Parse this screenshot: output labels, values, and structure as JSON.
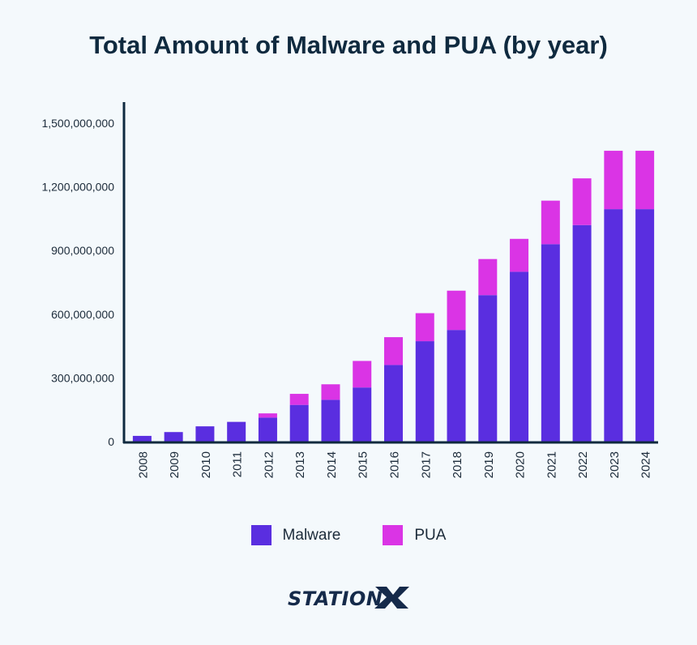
{
  "title": "Total Amount of Malware and PUA (by year)",
  "brand": "STATIONX",
  "legend": [
    {
      "label": "Malware",
      "color": "#5a2ee0"
    },
    {
      "label": "PUA",
      "color": "#da34e5"
    }
  ],
  "chart_data": {
    "type": "bar",
    "stacked": true,
    "title": "Total Amount of Malware and PUA (by year)",
    "xlabel": "",
    "ylabel": "",
    "ylim": [
      0,
      1600000000
    ],
    "yticks": [
      0,
      300000000,
      600000000,
      900000000,
      1200000000,
      1500000000
    ],
    "ytick_labels": [
      "0",
      "300,000,000",
      "600,000,000",
      "900,000,000",
      "1,200,000,000",
      "1,500,000,000"
    ],
    "grid": false,
    "legend_position": "bottom",
    "categories": [
      "2008",
      "2009",
      "2010",
      "2011",
      "2012",
      "2013",
      "2014",
      "2015",
      "2016",
      "2017",
      "2018",
      "2019",
      "2020",
      "2021",
      "2022",
      "2023",
      "2024"
    ],
    "series": [
      {
        "name": "Malware",
        "color": "#5a2ee0",
        "values": [
          27000000,
          45000000,
          72000000,
          93000000,
          113000000,
          173000000,
          197000000,
          255000000,
          361000000,
          473000000,
          526000000,
          690000000,
          800000000,
          930000000,
          1020000000,
          1095000000,
          1095000000
        ]
      },
      {
        "name": "PUA",
        "color": "#da34e5",
        "values": [
          0,
          0,
          0,
          0,
          20000000,
          52000000,
          73000000,
          125000000,
          131000000,
          132000000,
          185000000,
          170000000,
          155000000,
          205000000,
          220000000,
          275000000,
          275000000
        ]
      }
    ]
  }
}
